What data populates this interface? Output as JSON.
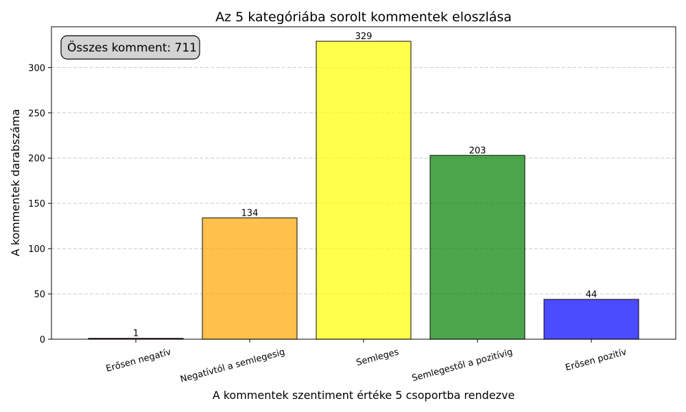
{
  "chart_data": {
    "type": "bar",
    "title": "Az 5 kategóriába sorolt kommentek eloszlása",
    "xlabel": "A kommentek szentiment értéke 5 csoportba rendezve",
    "ylabel": "A kommentek darabszáma",
    "categories": [
      "Erősen negatív",
      "Negatívtól a semlegesig",
      "Semleges",
      "Semlegestől a pozitívig",
      "Erősen pozitív"
    ],
    "values": [
      1,
      134,
      329,
      203,
      44
    ],
    "colors": [
      "#b22222",
      "#ffa500",
      "#ffff00",
      "#008000",
      "#0000ff"
    ],
    "ylim": [
      0,
      345
    ],
    "yticks": [
      0,
      50,
      100,
      150,
      200,
      250,
      300
    ],
    "grid": true,
    "annotation": "Összes komment: 711"
  }
}
